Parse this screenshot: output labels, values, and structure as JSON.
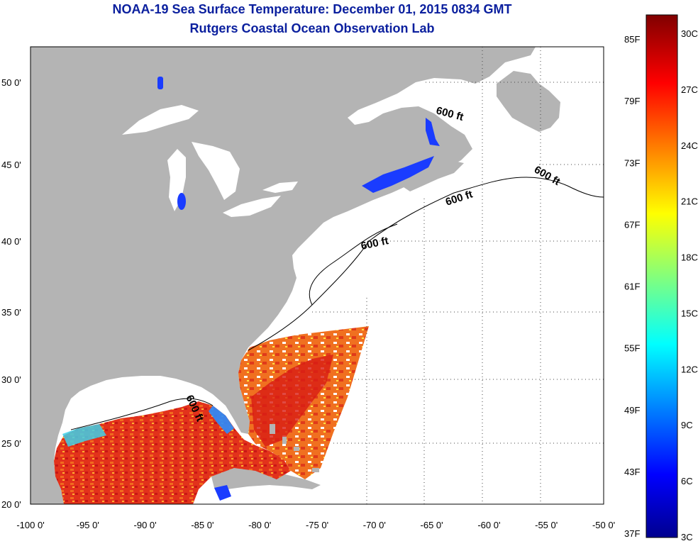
{
  "title": "NOAA-19 Sea Surface Temperature:  December 01, 2015 0834 GMT",
  "subtitle": "Rutgers Coastal Ocean Observation Lab",
  "map": {
    "lon_labels": [
      "-100 0'",
      "-95 0'",
      "-90 0'",
      "-85 0'",
      "-80 0'",
      "-75 0'",
      "-70 0'",
      "-65 0'",
      "-60 0'",
      "-55 0'",
      "-50 0'"
    ],
    "lat_labels": [
      "50 0'",
      "45 0'",
      "40 0'",
      "35 0'",
      "30 0'",
      "25 0'",
      "20 0'"
    ],
    "lon_range": [
      -100,
      -50
    ],
    "lat_range": [
      20,
      52.5
    ],
    "contour_label": "600 ft",
    "colors": {
      "land": "#b4b4b4",
      "ocean_nodata": "#ffffff",
      "grid": "#444444"
    }
  },
  "colorbar": {
    "fahrenheit_labels": [
      "85F",
      "79F",
      "73F",
      "67F",
      "61F",
      "55F",
      "49F",
      "43F",
      "37F"
    ],
    "celsius_labels": [
      "30C",
      "27C",
      "24C",
      "21C",
      "18C",
      "15C",
      "12C",
      "9C",
      "6C",
      "3C"
    ],
    "colormap": "jet"
  }
}
